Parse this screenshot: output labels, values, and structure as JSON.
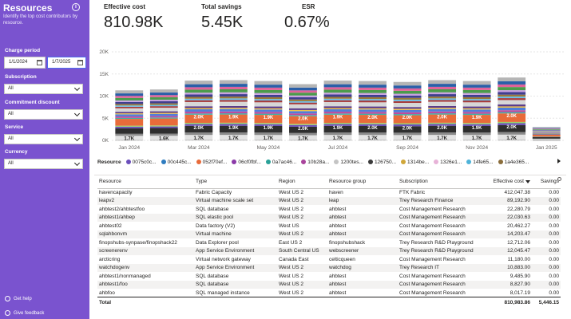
{
  "sidebar": {
    "title": "Resources",
    "subtitle": "Identify the top cost contributors by resource.",
    "charge_period_label": "Charge period",
    "start_date": "1/1/2024",
    "end_date": "1/7/2025",
    "filters": [
      {
        "label": "Subscription",
        "value": "All"
      },
      {
        "label": "Commitment discount",
        "value": "All"
      },
      {
        "label": "Service",
        "value": "All"
      },
      {
        "label": "Currency",
        "value": "All"
      }
    ],
    "get_help": "Get help",
    "give_feedback": "Give feedback"
  },
  "kpis": [
    {
      "label": "Effective cost",
      "value": "810.98K"
    },
    {
      "label": "Total savings",
      "value": "5.45K"
    },
    {
      "label": "ESR",
      "value": "0.67%"
    }
  ],
  "chart_data": {
    "type": "bar",
    "stacked": true,
    "yticks": [
      "20K",
      "15K",
      "10K",
      "5K",
      "0K"
    ],
    "ylim": [
      0,
      20000
    ],
    "xlabels": [
      "Jan 2024",
      "Mar 2024",
      "May 2024",
      "Jul 2024",
      "Sep 2024",
      "Nov 2024",
      "Jan 2025"
    ],
    "categories": [
      "Jan 2024",
      "Feb 2024",
      "Mar 2024",
      "Apr 2024",
      "May 2024",
      "Jun 2024",
      "Jul 2024",
      "Aug 2024",
      "Sep 2024",
      "Oct 2024",
      "Nov 2024",
      "Dec 2024",
      "Jan 2025"
    ],
    "totals": [
      11300,
      11500,
      13500,
      13600,
      13400,
      12700,
      13500,
      13400,
      13200,
      13600,
      13400,
      14200,
      3000
    ],
    "segment_labels": [
      [
        "1.7K",
        "",
        ""
      ],
      [
        "1.6K",
        "",
        ""
      ],
      [
        "1.7K",
        "2.0K",
        "2.0K"
      ],
      [
        "1.7K",
        "1.9K",
        "1.9K"
      ],
      [
        "1.7K",
        "1.9K",
        "1.9K"
      ],
      [
        "1.7K",
        "2.0K",
        "2.0K"
      ],
      [
        "1.7K",
        "1.9K",
        "1.9K"
      ],
      [
        "1.7K",
        "2.0K",
        "2.0K"
      ],
      [
        "1.7K",
        "2.0K",
        "2.0K"
      ],
      [
        "1.7K",
        "2.0K",
        "2.0K"
      ],
      [
        "1.7K",
        "1.9K",
        "1.9K"
      ],
      [
        "1.7K",
        "2.0K",
        "2.0K"
      ],
      [
        "",
        "",
        ""
      ]
    ],
    "legend_title": "Resource",
    "legend": [
      "0075c0c...",
      "00c445c...",
      "052f70ef...",
      "06cf0fbf...",
      "0a7ac46...",
      "10b28a...",
      "1200tes...",
      "126750...",
      "1314be...",
      "1326e1...",
      "14fe65...",
      "1a4e365..."
    ],
    "legend_colors": [
      "#6b4fbb",
      "#2f7cbf",
      "#e86b3a",
      "#8b3aa8",
      "#2aa198",
      "#a9449c",
      "#c4c4c4",
      "#3a3a3a",
      "#d0a73a",
      "#e7b3d8",
      "#4fb3d9",
      "#8a6d3b"
    ]
  },
  "table": {
    "headers": [
      "Resource",
      "Type",
      "Region",
      "Resource group",
      "Subscription",
      "Effective cost",
      "Savings"
    ],
    "rows": [
      [
        "havencapacity",
        "Fabric Capacity",
        "West US 2",
        "haven",
        "FTK Fabric",
        "412,047.38",
        "0.00"
      ],
      [
        "leapv2",
        "Virtual machine scale set",
        "West US 2",
        "leap",
        "Trey Research Finance",
        "89,192.90",
        "0.00"
      ],
      [
        "ahbtest2/ahbtestfoo",
        "SQL database",
        "West US 2",
        "ahbtest",
        "Cost Management Research",
        "22,280.79",
        "0.00"
      ],
      [
        "ahbtest1/ahbep",
        "SQL elastic pool",
        "West US 2",
        "ahbtest",
        "Cost Management Research",
        "22,030.63",
        "0.00"
      ],
      [
        "ahbtest02",
        "Data factory (V2)",
        "West US",
        "ahbtest",
        "Cost Management Research",
        "20,462.27",
        "0.00"
      ],
      [
        "sqlahbonvm",
        "Virtual machine",
        "West US 2",
        "ahbtest",
        "Cost Management Research",
        "14,203.47",
        "0.00"
      ],
      [
        "finopshubs-synpase/finopshack22",
        "Data Explorer pool",
        "East US 2",
        "finopshubshack",
        "Trey Research R&D Playground",
        "12,712.06",
        "0.00"
      ],
      [
        "screenerenv",
        "App Service Environment",
        "South Central US",
        "webscreener",
        "Trey Research R&D Playground",
        "12,045.47",
        "0.00"
      ],
      [
        "arcticring",
        "Virtual network gateway",
        "Canada East",
        "celticqueen",
        "Cost Management Research",
        "11,180.00",
        "0.00"
      ],
      [
        "watchdogenv",
        "App Service Environment",
        "West US 2",
        "watchdog",
        "Trey Research IT",
        "10,883.00",
        "0.00"
      ],
      [
        "ahbtest1/nonmanaged",
        "SQL database",
        "West US 2",
        "ahbtest",
        "Cost Management Research",
        "9,485.90",
        "0.00"
      ],
      [
        "ahbtest1/foo",
        "SQL database",
        "West US 2",
        "ahbtest",
        "Cost Management Research",
        "8,827.90",
        "0.00"
      ],
      [
        "ahbfoo",
        "SQL managed instance",
        "West US 2",
        "ahbtest",
        "Cost Management Research",
        "8,017.19",
        "0.00"
      ]
    ],
    "total_label": "Total",
    "total_cost": "810,983.86",
    "total_savings": "5,446.15"
  }
}
